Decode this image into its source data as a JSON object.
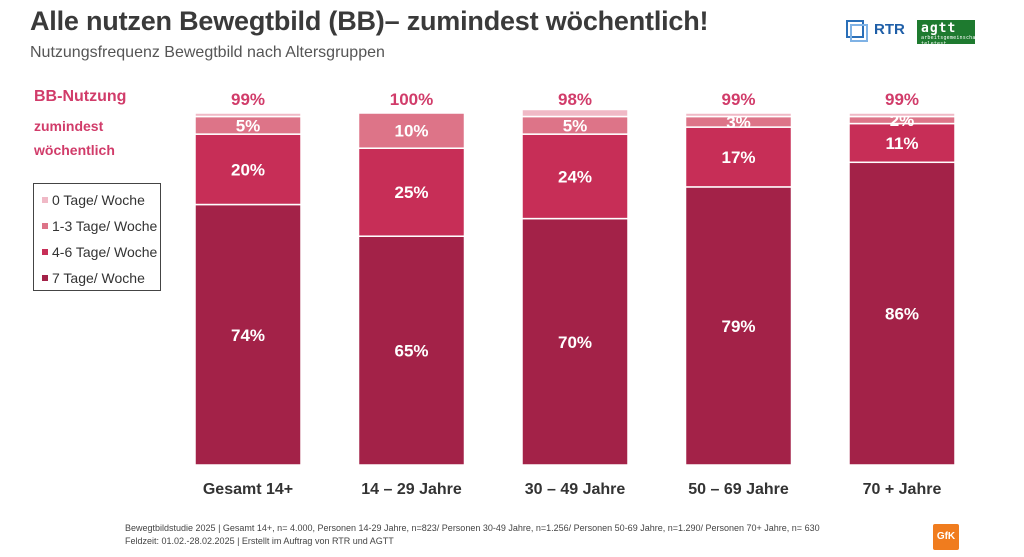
{
  "header": {
    "title": "Alle nutzen Bewegtbild (BB)– zumindest wöchentlich!",
    "subtitle": "Nutzungsfrequenz Bewegtbild nach Altersgruppen"
  },
  "logos": {
    "rtr": "RTR",
    "agtt": "agtt",
    "agtt_sub": "arbeitsgemeinschaft teletest",
    "gfk": "GfK"
  },
  "side": {
    "label": "BB-Nutzung",
    "sublabel": "zumindest wöchentlich"
  },
  "legend": [
    {
      "label": "0 Tage/ Woche",
      "color": "#f0b9c6"
    },
    {
      "label": "1-3 Tage/ Woche",
      "color": "#dd7488"
    },
    {
      "label": "4-6 Tage/ Woche",
      "color": "#c72e57"
    },
    {
      "label": "7 Tage/ Woche",
      "color": "#a32248"
    }
  ],
  "chart_data": {
    "type": "bar",
    "stacked": true,
    "categories": [
      "Gesamt 14+",
      "14 – 29 Jahre",
      "30 – 49 Jahre",
      "50 – 69 Jahre",
      "70 + Jahre"
    ],
    "series": [
      {
        "name": "7 Tage/ Woche",
        "color": "#a32248",
        "values": [
          74,
          65,
          70,
          79,
          86
        ],
        "labels": [
          "74%",
          "65%",
          "70%",
          "79%",
          "86%"
        ]
      },
      {
        "name": "4-6 Tage/ Woche",
        "color": "#c72e57",
        "values": [
          20,
          25,
          24,
          17,
          11
        ],
        "labels": [
          "20%",
          "25%",
          "24%",
          "17%",
          "11%"
        ]
      },
      {
        "name": "1-3 Tage/ Woche",
        "color": "#dd7488",
        "values": [
          5,
          10,
          5,
          3,
          2
        ],
        "labels": [
          "5%",
          "10%",
          "5%",
          "3%",
          "2%"
        ]
      },
      {
        "name": "0 Tage/ Woche",
        "color": "#f0b9c6",
        "values": [
          1,
          0,
          2,
          1,
          1
        ]
      }
    ],
    "totals": [
      "99%",
      "100%",
      "98%",
      "99%",
      "99%"
    ],
    "ylim": [
      0,
      100
    ]
  },
  "footer": {
    "line1": "Bewegtbildstudie 2025 | Gesamt 14+, n= 4.000, Personen 14-29 Jahre, n=823/ Personen 30-49 Jahre, n=1.256/ Personen 50-69 Jahre, n=1.290/ Personen 70+ Jahre, n= 630",
    "line2": "Feldzeit: 01.02.-28.02.2025 | Erstellt im Auftrag von RTR und AGTT"
  }
}
